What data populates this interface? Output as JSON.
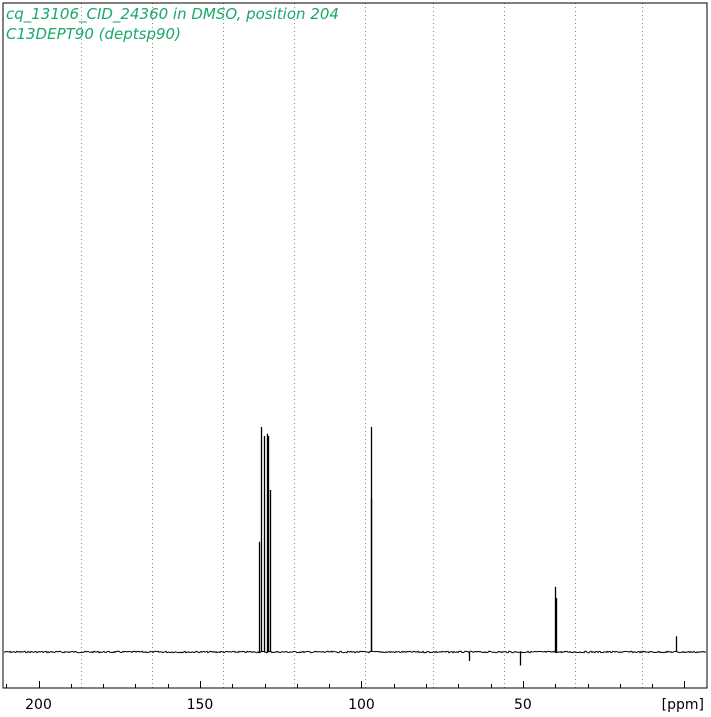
{
  "header": {
    "title_line_1": "cq_13106_CID_24360 in DMSO, position 204",
    "title_line_2": "C13DEPT90 (deptsp90)"
  },
  "colors": {
    "title": "#1aa86a",
    "trace": "#000000",
    "grid": "#8a8a8a",
    "frame": "#000000",
    "background": "#ffffff"
  },
  "chart_data": {
    "type": "line",
    "xlabel": "[ppm]",
    "xlim": [
      211,
      -7
    ],
    "x_reversed": true,
    "grid": "vertical dotted",
    "x_ticks": [
      {
        "value": 200,
        "label": "200"
      },
      {
        "value": 150,
        "label": "150"
      },
      {
        "value": 100,
        "label": "100"
      },
      {
        "value": 50,
        "label": "50"
      }
    ],
    "minor_tick_step": 10,
    "grid_lines_ppm": [
      187,
      165,
      143,
      121,
      99,
      78,
      56,
      34,
      13
    ],
    "ylim": [
      -0.08,
      1.0
    ],
    "baseline": 0,
    "peaks": [
      {
        "ppm": 131.8,
        "intensity": 0.49
      },
      {
        "ppm": 131.2,
        "intensity": 1.0
      },
      {
        "ppm": 130.3,
        "intensity": 0.96
      },
      {
        "ppm": 129.4,
        "intensity": 0.97
      },
      {
        "ppm": 128.8,
        "intensity": 0.96
      },
      {
        "ppm": 128.2,
        "intensity": 0.72
      },
      {
        "ppm": 97.2,
        "intensity": 1.0
      },
      {
        "ppm": 96.9,
        "intensity": 0.68
      },
      {
        "ppm": 40.2,
        "intensity": 0.29
      },
      {
        "ppm": 39.8,
        "intensity": 0.24
      },
      {
        "ppm": 2.5,
        "intensity": 0.07
      },
      {
        "ppm": 66.6,
        "intensity": -0.04
      },
      {
        "ppm": 51.0,
        "intensity": -0.06
      }
    ]
  }
}
